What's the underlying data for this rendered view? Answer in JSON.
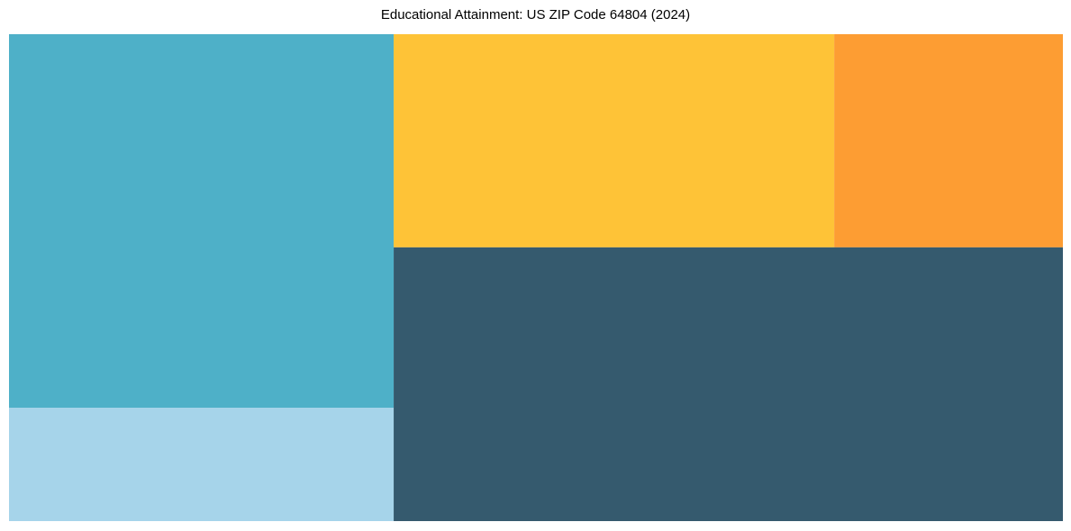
{
  "chart_data": {
    "type": "treemap",
    "title": "Educational Attainment: US ZIP Code 64804 (2024)",
    "values_percent": [
      28.0,
      8.5,
      18.3,
      9.5,
      35.7
    ],
    "colors": [
      "#4eb0c8",
      "#a6d4ea",
      "#fec337",
      "#fd9d33",
      "#355a6e"
    ],
    "labels_shown": false
  }
}
